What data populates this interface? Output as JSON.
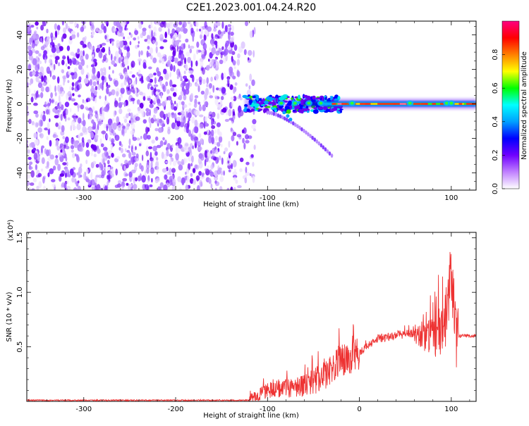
{
  "chart_data": [
    {
      "type": "heatmap",
      "title": "C2E1.2023.001.04.24.R20",
      "xlabel": "Height of straight line (km)",
      "ylabel": "Frequency (Hz)",
      "xlim": [
        -362,
        127
      ],
      "ylim": [
        -50,
        48
      ],
      "xticks": [
        -300,
        -200,
        -100,
        0,
        100
      ],
      "yticks": [
        -40,
        -20,
        0,
        20,
        40
      ],
      "colorbar": {
        "label": "Normalized spectral amplitude",
        "ticks": [
          "0.0",
          "0.2",
          "0.4",
          "0.6",
          "0.8"
        ],
        "range": [
          0,
          1
        ],
        "colors": [
          "#ffffff",
          "#c080ff",
          "#7000ff",
          "#0000ff",
          "#00a0ff",
          "#00ffff",
          "#00ff00",
          "#ffff00",
          "#ff8000",
          "#ff0000",
          "#ff0080"
        ]
      },
      "features": {
        "noise_region_x": [
          -362,
          -120
        ],
        "ridge": {
          "x": [
            -125,
            127
          ],
          "y": 0
        },
        "branch": {
          "x": [
            -100,
            -30
          ],
          "y": [
            -5,
            -30
          ]
        }
      }
    },
    {
      "type": "line",
      "xlabel": "Height of straight line (km)",
      "ylabel": "SNR (10 * v/v)",
      "scale_label": "(x10⁴)",
      "xlim": [
        -362,
        127
      ],
      "ylim": [
        0,
        1.55
      ],
      "xticks": [
        -300,
        -200,
        -100,
        0,
        100
      ],
      "yticks": [
        "0.5",
        "1.0",
        "1.5"
      ],
      "ytick_values": [
        0.5,
        1.0,
        1.5
      ],
      "color": "#ee3333",
      "series": [
        {
          "x": [
            -362,
            -300,
            -200,
            -120,
            -100,
            -80,
            -60,
            -40,
            -20,
            0,
            20,
            40,
            60,
            80,
            90,
            95,
            100,
            105,
            110,
            127
          ],
          "values": [
            0.01,
            0.01,
            0.01,
            0.01,
            0.1,
            0.12,
            0.15,
            0.22,
            0.38,
            0.45,
            0.57,
            0.61,
            0.62,
            0.6,
            0.7,
            0.8,
            1.3,
            0.58,
            0.6,
            0.6
          ]
        }
      ]
    }
  ]
}
